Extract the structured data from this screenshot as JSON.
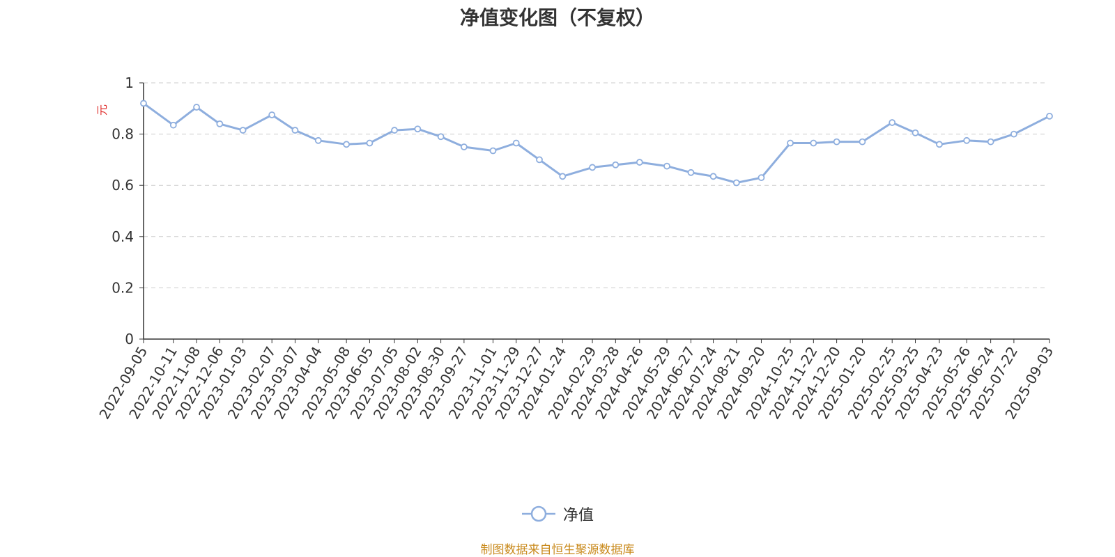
{
  "chart_data": {
    "type": "line",
    "title": "净值变化图（不复权）",
    "ylabel": "元",
    "ylim": [
      0,
      1
    ],
    "yticks": [
      "0",
      "0.2",
      "0.4",
      "0.6",
      "0.8",
      "1"
    ],
    "ytick_values": [
      0,
      0.2,
      0.4,
      0.6,
      0.8,
      1.0
    ],
    "grid": true,
    "legend_position": "bottom-center",
    "x_tick_labels": [
      "2022-09-05",
      "2022-10-11",
      "2022-11-08",
      "2022-12-06",
      "2023-01-03",
      "2023-02-07",
      "2023-03-07",
      "2023-04-04",
      "2023-05-08",
      "2023-06-05",
      "2023-07-05",
      "2023-08-02",
      "2023-08-30",
      "2023-09-27",
      "2023-11-01",
      "2023-11-29",
      "2023-12-27",
      "2024-01-24",
      "2024-02-29",
      "2024-03-28",
      "2024-04-26",
      "2024-05-29",
      "2024-06-27",
      "2024-07-24",
      "2024-08-21",
      "2024-09-20",
      "2024-10-25",
      "2024-11-22",
      "2024-12-20",
      "2025-01-20",
      "2025-02-25",
      "2025-03-25",
      "2025-04-23",
      "2025-05-26",
      "2025-06-24",
      "2025-07-22",
      "2025-09-03"
    ],
    "series": [
      {
        "name": "净值",
        "color": "#8eaede",
        "x": [
          "2022-09-05",
          "2022-10-11",
          "2022-11-08",
          "2022-12-06",
          "2023-01-03",
          "2023-02-07",
          "2023-03-07",
          "2023-04-04",
          "2023-05-08",
          "2023-06-05",
          "2023-07-05",
          "2023-08-02",
          "2023-08-30",
          "2023-09-27",
          "2023-11-01",
          "2023-11-29",
          "2023-12-27",
          "2024-01-24",
          "2024-02-29",
          "2024-03-28",
          "2024-04-26",
          "2024-05-29",
          "2024-06-27",
          "2024-07-24",
          "2024-08-21",
          "2024-09-20",
          "2024-10-25",
          "2024-11-22",
          "2024-12-20",
          "2025-01-20",
          "2025-02-25",
          "2025-03-25",
          "2025-04-23",
          "2025-05-26",
          "2025-06-24",
          "2025-07-22",
          "2025-09-03"
        ],
        "values": [
          0.92,
          0.835,
          0.905,
          0.84,
          0.815,
          0.875,
          0.815,
          0.775,
          0.76,
          0.765,
          0.815,
          0.82,
          0.79,
          0.75,
          0.735,
          0.765,
          0.7,
          0.635,
          0.67,
          0.68,
          0.69,
          0.675,
          0.65,
          0.635,
          0.61,
          0.63,
          0.765,
          0.765,
          0.77,
          0.77,
          0.845,
          0.805,
          0.76,
          0.775,
          0.77,
          0.8,
          0.87
        ]
      }
    ]
  },
  "legend": {
    "label": "净值"
  },
  "source": "制图数据来自恒生聚源数据库"
}
